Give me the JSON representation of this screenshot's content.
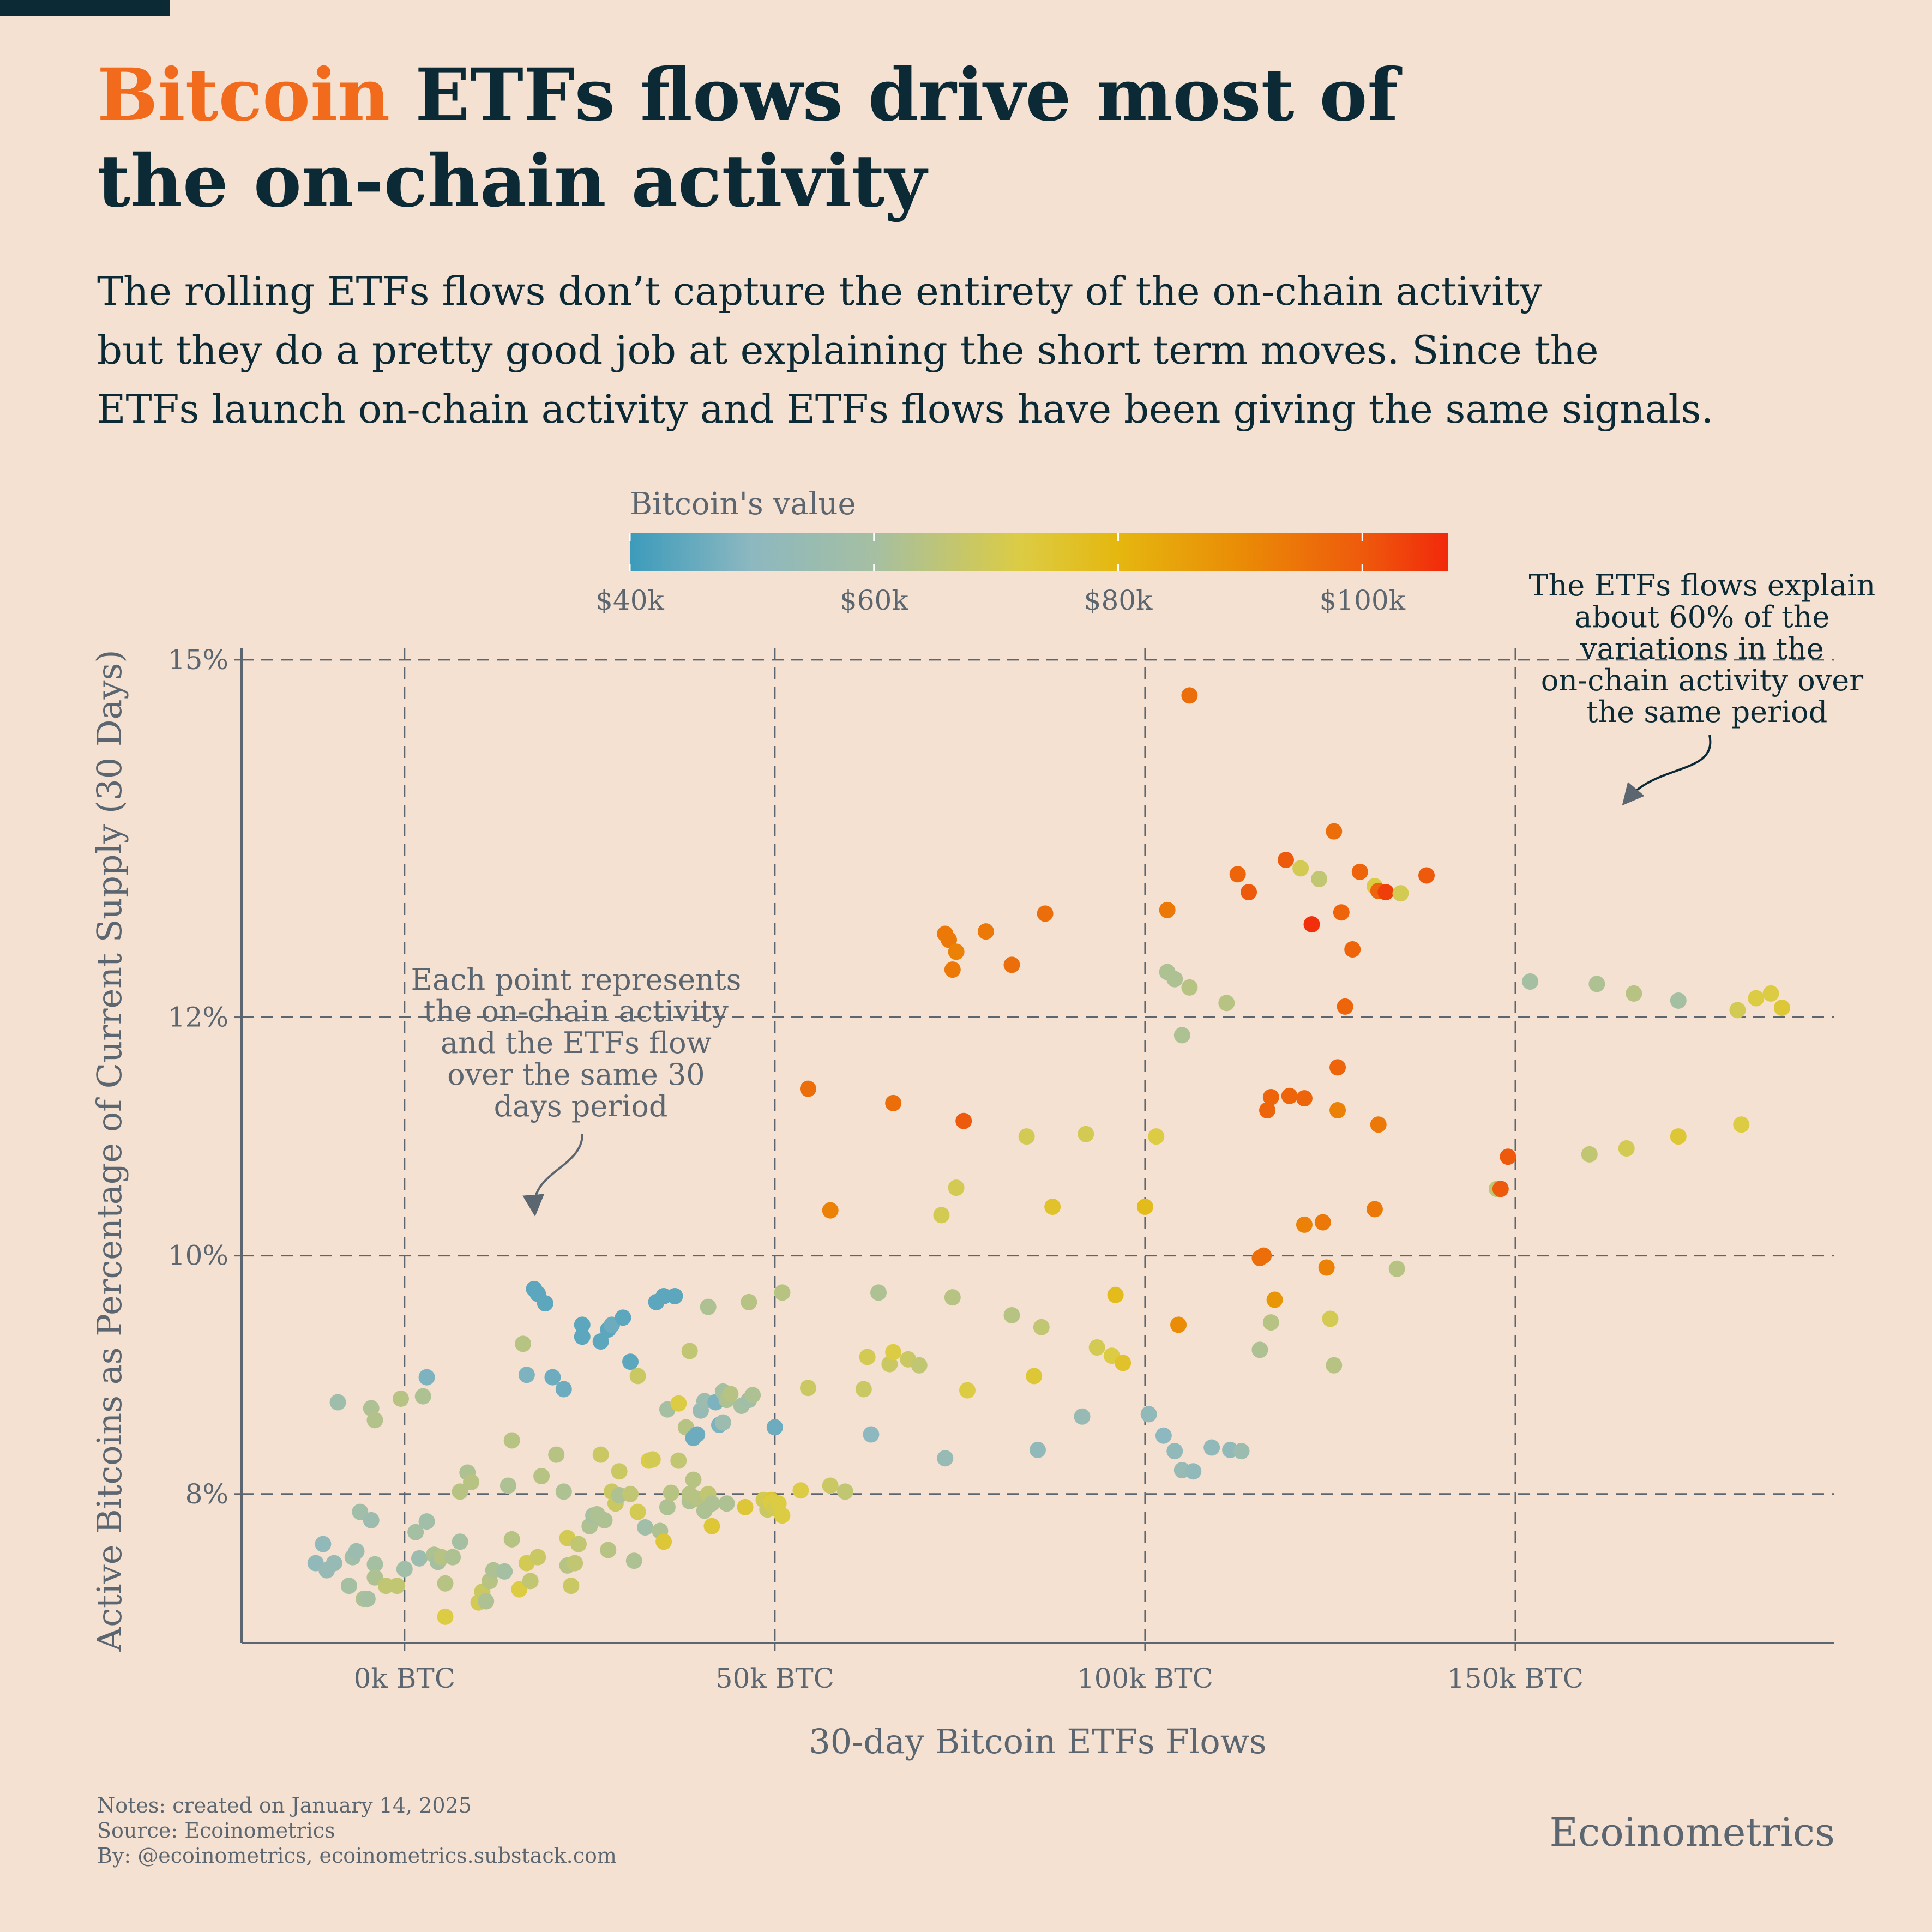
{
  "title": {
    "highlight": "Bitcoin",
    "rest_line1": " ETFs flows drive most of",
    "line2": "the on-chain activity"
  },
  "subtitle": {
    "line1": "The rolling ETFs flows don’t capture the entirety of the on-chain activity",
    "line2": "but they do a pretty good job at explaining the short term moves. Since the",
    "line3": "ETFs launch on-chain activity and ETFs flows have been giving the same signals."
  },
  "footer": {
    "notes": "Notes: created on January 14, 2025",
    "source": "Source: Ecoinometrics",
    "by": "By: @ecoinometrics, ecoinometrics.substack.com",
    "brand": "Ecoinometrics"
  },
  "colors": {
    "background": "#f4e1d1",
    "title": "#0b2a36",
    "highlight": "#f26b1d",
    "axis": "#5b6670"
  },
  "chart_data": {
    "type": "scatter",
    "xlabel": "30-day Bitcoin ETFs Flows",
    "ylabel": "Active Bitcoins as Percentage of Current Supply (30 Days)",
    "xlim": [
      -22000,
      193000
    ],
    "ylim": [
      6.75,
      15.1
    ],
    "x_ticks": [
      0,
      50000,
      100000,
      150000
    ],
    "x_tick_labels": [
      "0k BTC",
      "50k BTC",
      "100k BTC",
      "150k BTC"
    ],
    "y_ticks": [
      8,
      10,
      12,
      15
    ],
    "y_tick_labels": [
      "8%",
      "10%",
      "12%",
      "15%"
    ],
    "grid": true,
    "color_scale": {
      "title": "Bitcoin's value",
      "range": [
        40000,
        107000
      ],
      "ticks": [
        40000,
        60000,
        80000,
        100000
      ],
      "tick_labels": [
        "$40k",
        "$60k",
        "$80k",
        "$100k"
      ],
      "stops": [
        {
          "v": 40000,
          "c": "#3c9bbb"
        },
        {
          "v": 50000,
          "c": "#8db8c0"
        },
        {
          "v": 60000,
          "c": "#a5bfa2"
        },
        {
          "v": 72000,
          "c": "#dccc44"
        },
        {
          "v": 80000,
          "c": "#e5b70f"
        },
        {
          "v": 90000,
          "c": "#ea8c06"
        },
        {
          "v": 100000,
          "c": "#ee5a0c"
        },
        {
          "v": 107000,
          "c": "#f2290b"
        }
      ]
    },
    "annotations": [
      {
        "text": [
          "Each point represents",
          "the on-chain activity",
          "and the ETFs flow",
          "over the same 30",
          "days period"
        ]
      },
      {
        "text": [
          "The ETFs flows explain",
          "about 60% of the",
          "variations in the",
          "on-chain activity over",
          "the same period"
        ]
      }
    ],
    "points": [
      [
        -12000,
        7.42,
        52000
      ],
      [
        -11000,
        7.58,
        52000
      ],
      [
        -10500,
        7.36,
        54000
      ],
      [
        -9500,
        7.42,
        54000
      ],
      [
        -9000,
        8.77,
        57000
      ],
      [
        -7500,
        7.23,
        60000
      ],
      [
        -7000,
        7.47,
        58000
      ],
      [
        -6500,
        7.52,
        56000
      ],
      [
        -6000,
        7.85,
        58000
      ],
      [
        -5500,
        7.12,
        62000
      ],
      [
        -5000,
        7.12,
        60000
      ],
      [
        -4500,
        7.78,
        56000
      ],
      [
        -4500,
        8.72,
        62000
      ],
      [
        -4000,
        8.62,
        63000
      ],
      [
        -4000,
        7.41,
        60000
      ],
      [
        -4000,
        7.3,
        62000
      ],
      [
        -2500,
        7.23,
        66000
      ],
      [
        -1000,
        7.23,
        66000
      ],
      [
        -500,
        8.8,
        64000
      ],
      [
        0,
        7.37,
        58000
      ],
      [
        1500,
        7.68,
        60000
      ],
      [
        2000,
        7.46,
        56000
      ],
      [
        2500,
        8.82,
        62000
      ],
      [
        3000,
        8.98,
        48000
      ],
      [
        3000,
        7.77,
        58000
      ],
      [
        4000,
        7.49,
        62000
      ],
      [
        4500,
        7.43,
        60000
      ],
      [
        5500,
        7.25,
        64000
      ],
      [
        5000,
        7.47,
        64000
      ],
      [
        5500,
        6.97,
        72000
      ],
      [
        6500,
        7.47,
        62000
      ],
      [
        7500,
        8.02,
        64000
      ],
      [
        7500,
        7.6,
        60000
      ],
      [
        8500,
        8.18,
        62000
      ],
      [
        9000,
        8.1,
        64000
      ],
      [
        10000,
        7.09,
        70000
      ],
      [
        10500,
        7.18,
        68000
      ],
      [
        11000,
        7.1,
        62000
      ],
      [
        11500,
        7.27,
        64000
      ],
      [
        12000,
        7.36,
        62000
      ],
      [
        13500,
        7.35,
        60000
      ],
      [
        14000,
        8.07,
        62000
      ],
      [
        14500,
        7.62,
        64000
      ],
      [
        14500,
        8.45,
        64000
      ],
      [
        15500,
        7.2,
        72000
      ],
      [
        16000,
        9.26,
        64000
      ],
      [
        16500,
        9.0,
        48000
      ],
      [
        16500,
        7.42,
        70000
      ],
      [
        17000,
        7.27,
        66000
      ],
      [
        17500,
        9.72,
        44000
      ],
      [
        18000,
        9.68,
        44000
      ],
      [
        18000,
        7.47,
        68000
      ],
      [
        18500,
        8.15,
        64000
      ],
      [
        19000,
        9.6,
        44000
      ],
      [
        20000,
        8.98,
        46000
      ],
      [
        20500,
        8.33,
        64000
      ],
      [
        21500,
        8.88,
        46000
      ],
      [
        21500,
        8.02,
        62000
      ],
      [
        22000,
        7.63,
        70000
      ],
      [
        22000,
        7.4,
        64000
      ],
      [
        22500,
        7.23,
        68000
      ],
      [
        23000,
        7.42,
        66000
      ],
      [
        23500,
        7.58,
        66000
      ],
      [
        24000,
        9.42,
        44000
      ],
      [
        24000,
        9.32,
        44000
      ],
      [
        25000,
        7.73,
        62000
      ],
      [
        25500,
        7.82,
        60000
      ],
      [
        26000,
        7.83,
        62000
      ],
      [
        26500,
        8.33,
        68000
      ],
      [
        26500,
        9.28,
        44000
      ],
      [
        27000,
        7.78,
        62000
      ],
      [
        27500,
        7.53,
        64000
      ],
      [
        27500,
        9.38,
        44000
      ],
      [
        28000,
        8.02,
        68000
      ],
      [
        28000,
        9.42,
        46000
      ],
      [
        28500,
        7.92,
        68000
      ],
      [
        29000,
        8.19,
        68000
      ],
      [
        29000,
        7.99,
        62000
      ],
      [
        29500,
        9.48,
        44000
      ],
      [
        30500,
        8.0,
        66000
      ],
      [
        31000,
        7.44,
        62000
      ],
      [
        30500,
        9.11,
        44000
      ],
      [
        31500,
        7.85,
        70000
      ],
      [
        31500,
        8.99,
        68000
      ],
      [
        32500,
        7.72,
        58000
      ],
      [
        33000,
        8.28,
        72000
      ],
      [
        33500,
        8.29,
        70000
      ],
      [
        34000,
        9.61,
        44000
      ],
      [
        34500,
        7.69,
        62000
      ],
      [
        35000,
        9.66,
        44000
      ],
      [
        35000,
        7.6,
        74000
      ],
      [
        35500,
        8.71,
        60000
      ],
      [
        35500,
        7.89,
        62000
      ],
      [
        36500,
        9.66,
        44000
      ],
      [
        36000,
        8.01,
        64000
      ],
      [
        37000,
        8.28,
        66000
      ],
      [
        37000,
        8.76,
        72000
      ],
      [
        38000,
        8.56,
        64000
      ],
      [
        38500,
        7.94,
        62000
      ],
      [
        38500,
        8.0,
        64000
      ],
      [
        38500,
        9.2,
        66000
      ],
      [
        39000,
        8.47,
        46000
      ],
      [
        39000,
        8.12,
        64000
      ],
      [
        39500,
        8.5,
        46000
      ],
      [
        39500,
        7.96,
        64000
      ],
      [
        40000,
        8.7,
        54000
      ],
      [
        40500,
        7.86,
        62000
      ],
      [
        40500,
        8.78,
        56000
      ],
      [
        41000,
        9.57,
        62000
      ],
      [
        41000,
        8.0,
        66000
      ],
      [
        41500,
        7.73,
        74000
      ],
      [
        41500,
        7.92,
        62000
      ],
      [
        42000,
        8.77,
        48000
      ],
      [
        42500,
        8.58,
        48000
      ],
      [
        43000,
        8.86,
        60000
      ],
      [
        43000,
        8.6,
        56000
      ],
      [
        43500,
        7.92,
        62000
      ],
      [
        43500,
        8.79,
        62000
      ],
      [
        44000,
        8.84,
        64000
      ],
      [
        45500,
        8.74,
        60000
      ],
      [
        46500,
        9.61,
        64000
      ],
      [
        46000,
        7.89,
        74000
      ],
      [
        46500,
        8.79,
        58000
      ],
      [
        47000,
        8.83,
        62000
      ],
      [
        48500,
        7.95,
        70000
      ],
      [
        49000,
        7.87,
        68000
      ],
      [
        49500,
        7.95,
        74000
      ],
      [
        49500,
        7.93,
        72000
      ],
      [
        50000,
        7.88,
        70000
      ],
      [
        50000,
        8.56,
        46000
      ],
      [
        50500,
        7.92,
        72000
      ],
      [
        51000,
        7.82,
        72000
      ],
      [
        51000,
        9.69,
        64000
      ],
      [
        53500,
        8.03,
        72000
      ],
      [
        54500,
        11.4,
        96000
      ],
      [
        54500,
        8.89,
        68000
      ],
      [
        57500,
        10.38,
        92000
      ],
      [
        57500,
        8.07,
        68000
      ],
      [
        59500,
        8.02,
        66000
      ],
      [
        62000,
        8.88,
        68000
      ],
      [
        62500,
        9.15,
        70000
      ],
      [
        63000,
        8.5,
        50000
      ],
      [
        64000,
        9.69,
        62000
      ],
      [
        65500,
        9.09,
        68000
      ],
      [
        66000,
        11.28,
        96000
      ],
      [
        66000,
        9.19,
        72000
      ],
      [
        68000,
        9.13,
        68000
      ],
      [
        69500,
        9.08,
        66000
      ],
      [
        72500,
        10.34,
        70000
      ],
      [
        73000,
        8.3,
        54000
      ],
      [
        73000,
        12.7,
        94000
      ],
      [
        73500,
        12.65,
        94000
      ],
      [
        74000,
        9.65,
        64000
      ],
      [
        74000,
        12.4,
        94000
      ],
      [
        74500,
        10.57,
        70000
      ],
      [
        74500,
        12.55,
        92000
      ],
      [
        75500,
        11.13,
        100000
      ],
      [
        76000,
        8.87,
        72000
      ],
      [
        78500,
        12.72,
        94000
      ],
      [
        82000,
        9.5,
        64000
      ],
      [
        82000,
        12.44,
        96000
      ],
      [
        84000,
        11.0,
        70000
      ],
      [
        85000,
        8.99,
        74000
      ],
      [
        85500,
        8.37,
        52000
      ],
      [
        86000,
        9.4,
        66000
      ],
      [
        86500,
        12.87,
        96000
      ],
      [
        87500,
        10.41,
        76000
      ],
      [
        91500,
        8.65,
        54000
      ],
      [
        92000,
        11.02,
        70000
      ],
      [
        93500,
        9.23,
        70000
      ],
      [
        95500,
        9.16,
        72000
      ],
      [
        96000,
        9.67,
        78000
      ],
      [
        97000,
        9.1,
        76000
      ],
      [
        100000,
        10.41,
        78000
      ],
      [
        100500,
        8.67,
        52000
      ],
      [
        101500,
        11.0,
        72000
      ],
      [
        102500,
        8.49,
        50000
      ],
      [
        103000,
        12.9,
        94000
      ],
      [
        103000,
        12.38,
        62000
      ],
      [
        104000,
        12.32,
        62000
      ],
      [
        104000,
        8.36,
        52000
      ],
      [
        104500,
        9.42,
        90000
      ],
      [
        105000,
        11.85,
        62000
      ],
      [
        105000,
        8.2,
        54000
      ],
      [
        106000,
        14.7,
        96000
      ],
      [
        106000,
        12.25,
        64000
      ],
      [
        106500,
        8.19,
        52000
      ],
      [
        109000,
        8.39,
        52000
      ],
      [
        111000,
        12.12,
        64000
      ],
      [
        111500,
        8.37,
        52000
      ],
      [
        112500,
        13.2,
        98000
      ],
      [
        113000,
        8.36,
        56000
      ],
      [
        114000,
        13.05,
        100000
      ],
      [
        115500,
        9.21,
        62000
      ],
      [
        115500,
        9.98,
        96000
      ],
      [
        116000,
        10.0,
        96000
      ],
      [
        116500,
        11.22,
        98000
      ],
      [
        117000,
        11.33,
        98000
      ],
      [
        117000,
        9.44,
        64000
      ],
      [
        117500,
        9.63,
        88000
      ],
      [
        119000,
        13.32,
        100000
      ],
      [
        119500,
        11.34,
        98000
      ],
      [
        121000,
        13.25,
        70000
      ],
      [
        121500,
        11.32,
        98000
      ],
      [
        121500,
        10.26,
        92000
      ],
      [
        122500,
        12.78,
        106000
      ],
      [
        123500,
        13.16,
        66000
      ],
      [
        124000,
        10.28,
        94000
      ],
      [
        124500,
        9.9,
        92000
      ],
      [
        125000,
        9.47,
        70000
      ],
      [
        125500,
        9.08,
        64000
      ],
      [
        125500,
        13.56,
        96000
      ],
      [
        126000,
        11.58,
        98000
      ],
      [
        126000,
        11.22,
        92000
      ],
      [
        126500,
        12.88,
        98000
      ],
      [
        127000,
        12.09,
        98000
      ],
      [
        128000,
        12.57,
        98000
      ],
      [
        129000,
        13.22,
        98000
      ],
      [
        131000,
        10.39,
        94000
      ],
      [
        131000,
        13.1,
        72000
      ],
      [
        131500,
        11.1,
        94000
      ],
      [
        131500,
        13.06,
        98000
      ],
      [
        132500,
        13.05,
        104000
      ],
      [
        134000,
        9.89,
        64000
      ],
      [
        134500,
        13.04,
        70000
      ],
      [
        138000,
        13.19,
        100000
      ],
      [
        147500,
        10.56,
        66000
      ],
      [
        148000,
        10.56,
        100000
      ],
      [
        149000,
        10.83,
        100000
      ],
      [
        152000,
        12.3,
        60000
      ],
      [
        160000,
        10.85,
        66000
      ],
      [
        161000,
        12.28,
        62000
      ],
      [
        165000,
        10.9,
        70000
      ],
      [
        166000,
        12.2,
        64000
      ],
      [
        172000,
        11.0,
        74000
      ],
      [
        172000,
        12.14,
        60000
      ],
      [
        180000,
        12.06,
        70000
      ],
      [
        180500,
        11.1,
        72000
      ],
      [
        182500,
        12.16,
        72000
      ],
      [
        184500,
        12.2,
        72000
      ],
      [
        186000,
        12.08,
        74000
      ]
    ]
  }
}
